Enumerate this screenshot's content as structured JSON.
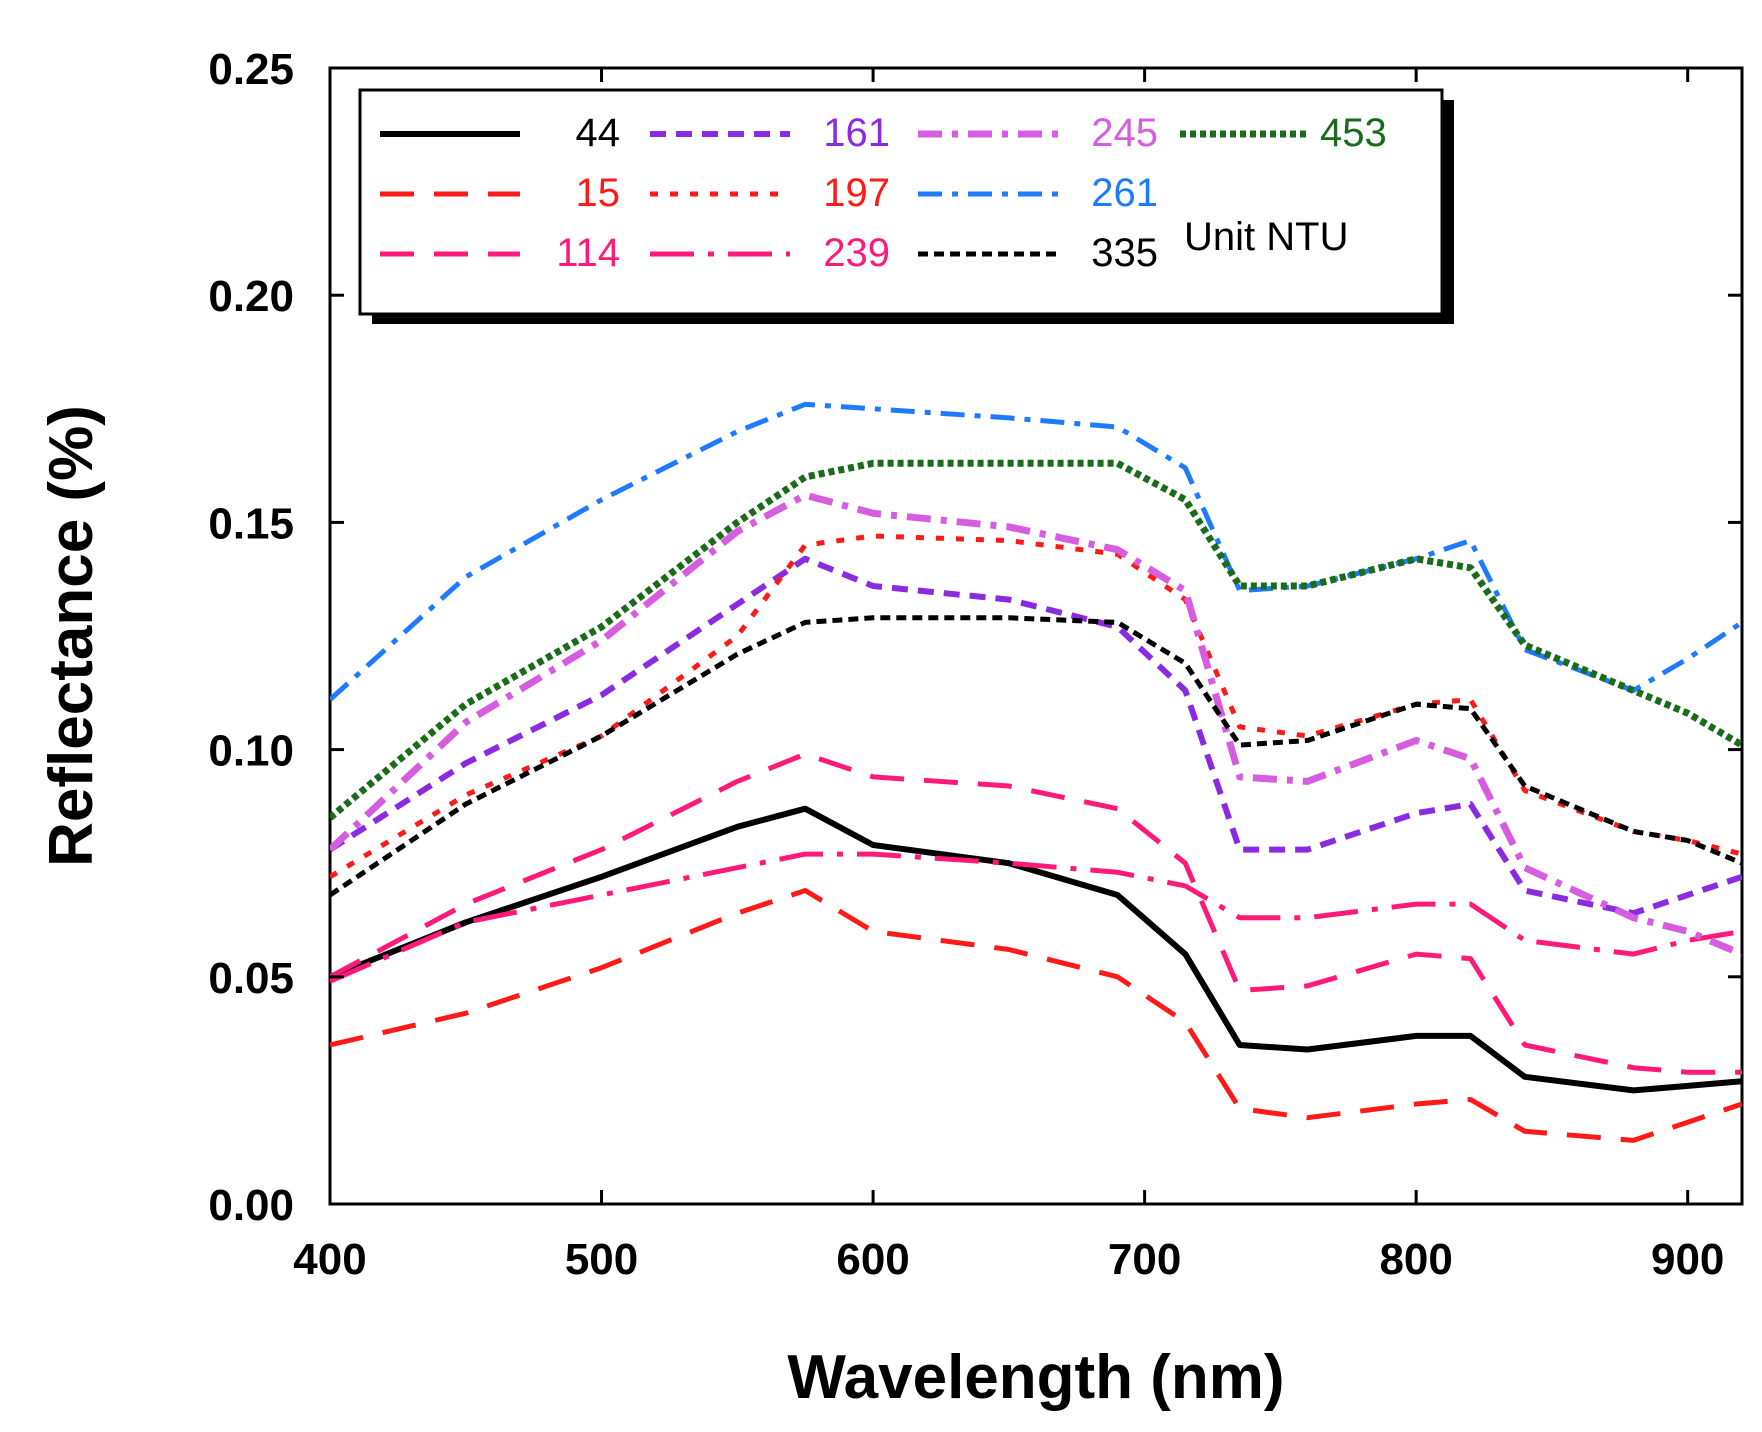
{
  "chart_data": {
    "type": "line",
    "title": "",
    "xlabel": "Wavelength (nm)",
    "ylabel": "Reflectance (%)",
    "xlim": [
      400,
      920
    ],
    "ylim": [
      0,
      0.25
    ],
    "x_ticks": [
      400,
      500,
      600,
      700,
      800,
      900
    ],
    "x_tick_labels": [
      "400",
      "500",
      "600",
      "700",
      "800",
      "900"
    ],
    "y_ticks": [
      0,
      0.05,
      0.1,
      0.15,
      0.2,
      0.25
    ],
    "y_tick_labels": [
      "0.00",
      "0.05",
      "0.10",
      "0.15",
      "0.20",
      "0.25"
    ],
    "grid": false,
    "legend_position": "top",
    "unit_label": "Unit  NTU",
    "x": [
      400,
      450,
      500,
      550,
      575,
      600,
      650,
      690,
      715,
      735,
      760,
      800,
      820,
      840,
      880,
      900,
      920
    ],
    "series": [
      {
        "name": "44",
        "color": "#000000",
        "dash": "solid",
        "width": 6,
        "values": [
          0.05,
          0.062,
          0.072,
          0.083,
          0.087,
          0.079,
          0.075,
          0.068,
          0.055,
          0.035,
          0.034,
          0.037,
          0.037,
          0.028,
          0.025,
          0.026,
          0.027
        ]
      },
      {
        "name": "15",
        "color": "#ff1a1a",
        "dash": "long",
        "width": 5,
        "values": [
          0.035,
          0.042,
          0.052,
          0.064,
          0.069,
          0.06,
          0.056,
          0.05,
          0.04,
          0.021,
          0.019,
          0.022,
          0.023,
          0.016,
          0.014,
          0.018,
          0.022
        ]
      },
      {
        "name": "114",
        "color": "#ff1a7a",
        "dash": "long",
        "width": 5,
        "values": [
          0.05,
          0.066,
          0.078,
          0.093,
          0.099,
          0.094,
          0.092,
          0.087,
          0.075,
          0.047,
          0.048,
          0.055,
          0.054,
          0.035,
          0.03,
          0.029,
          0.029
        ]
      },
      {
        "name": "161",
        "color": "#8a2be2",
        "dash": "dash",
        "width": 6,
        "values": [
          0.078,
          0.097,
          0.112,
          0.132,
          0.142,
          0.136,
          0.133,
          0.127,
          0.113,
          0.078,
          0.078,
          0.086,
          0.088,
          0.069,
          0.064,
          0.068,
          0.072
        ]
      },
      {
        "name": "197",
        "color": "#ff1a1a",
        "dash": "dot",
        "width": 5,
        "values": [
          0.072,
          0.09,
          0.103,
          0.125,
          0.145,
          0.147,
          0.146,
          0.143,
          0.133,
          0.105,
          0.103,
          0.11,
          0.111,
          0.091,
          0.082,
          0.08,
          0.077
        ]
      },
      {
        "name": "239",
        "color": "#ff1a7a",
        "dash": "longdot",
        "width": 5,
        "values": [
          0.049,
          0.062,
          0.068,
          0.074,
          0.077,
          0.077,
          0.075,
          0.073,
          0.07,
          0.063,
          0.063,
          0.066,
          0.066,
          0.058,
          0.055,
          0.058,
          0.06
        ]
      },
      {
        "name": "245",
        "color": "#d65ce0",
        "dash": "dashdot",
        "width": 7,
        "values": [
          0.078,
          0.106,
          0.124,
          0.148,
          0.156,
          0.152,
          0.149,
          0.144,
          0.135,
          0.094,
          0.093,
          0.102,
          0.098,
          0.074,
          0.063,
          0.06,
          0.055
        ]
      },
      {
        "name": "261",
        "color": "#1e7bff",
        "dash": "dashdot",
        "width": 5,
        "values": [
          0.111,
          0.138,
          0.155,
          0.17,
          0.176,
          0.175,
          0.173,
          0.171,
          0.162,
          0.135,
          0.136,
          0.142,
          0.146,
          0.122,
          0.113,
          0.12,
          0.128
        ]
      },
      {
        "name": "335",
        "color": "#000000",
        "dash": "shortdot",
        "width": 5,
        "values": [
          0.068,
          0.088,
          0.103,
          0.121,
          0.128,
          0.129,
          0.129,
          0.128,
          0.119,
          0.101,
          0.102,
          0.11,
          0.109,
          0.092,
          0.082,
          0.08,
          0.075
        ]
      },
      {
        "name": "453",
        "color": "#1a6b1a",
        "dash": "dense",
        "width": 7,
        "values": [
          0.085,
          0.11,
          0.127,
          0.15,
          0.16,
          0.163,
          0.163,
          0.163,
          0.155,
          0.136,
          0.136,
          0.142,
          0.14,
          0.123,
          0.113,
          0.108,
          0.101
        ]
      }
    ]
  }
}
